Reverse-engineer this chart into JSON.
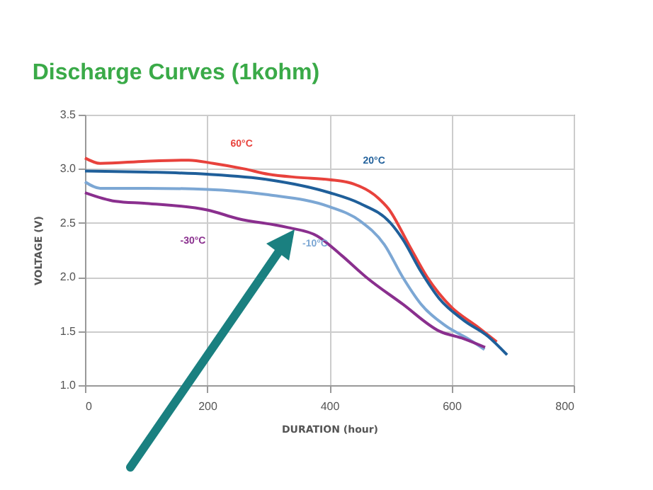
{
  "chart_data": {
    "type": "line",
    "title": "Discharge Curves (1kohm)",
    "xlabel": "DURATION (hour)",
    "ylabel": "VOLTAGE (V)",
    "xlim": [
      0,
      800
    ],
    "xticks": [
      0,
      200,
      400,
      600,
      800
    ],
    "ylim": [
      1.0,
      3.5
    ],
    "yticks": [
      {
        "value": 1,
        "label": "1.0"
      },
      1.5,
      {
        "value": 2,
        "label": "2.0"
      },
      2.5,
      {
        "value": 3,
        "label": "3.0"
      },
      3.5
    ],
    "grid": true,
    "line_style": "solid",
    "series": [
      {
        "name": "60°C",
        "color": "#e8423c",
        "x": [
          0,
          25,
          100,
          170,
          210,
          260,
          300,
          350,
          400,
          440,
          480,
          497,
          530,
          560,
          600,
          640,
          674
        ],
        "values": [
          3.1,
          3.05,
          3.07,
          3.08,
          3.05,
          3.0,
          2.95,
          2.92,
          2.9,
          2.86,
          2.73,
          2.63,
          2.3,
          2.0,
          1.72,
          1.55,
          1.4
        ]
      },
      {
        "name": "20°C",
        "color": "#1f5f9a",
        "x": [
          0,
          100,
          200,
          300,
          400,
          450,
          500,
          520,
          550,
          580,
          620,
          660,
          691
        ],
        "values": [
          2.98,
          2.97,
          2.95,
          2.9,
          2.78,
          2.68,
          2.5,
          2.35,
          2.05,
          1.8,
          1.6,
          1.45,
          1.28
        ]
      },
      {
        "name": "-10°C",
        "color": "#7ca7d4",
        "x": [
          0,
          25,
          100,
          200,
          300,
          400,
          450,
          490,
          520,
          550,
          590,
          630,
          654
        ],
        "values": [
          2.88,
          2.82,
          2.82,
          2.81,
          2.76,
          2.65,
          2.52,
          2.3,
          2.0,
          1.75,
          1.55,
          1.42,
          1.33
        ]
      },
      {
        "name": "-30°C",
        "color": "#8a2f8e",
        "x": [
          0,
          50,
          100,
          200,
          250,
          330,
          380,
          420,
          460,
          520,
          580,
          620,
          655
        ],
        "values": [
          2.78,
          2.7,
          2.68,
          2.62,
          2.54,
          2.46,
          2.38,
          2.2,
          2.0,
          1.75,
          1.5,
          1.43,
          1.35
        ]
      }
    ]
  }
}
